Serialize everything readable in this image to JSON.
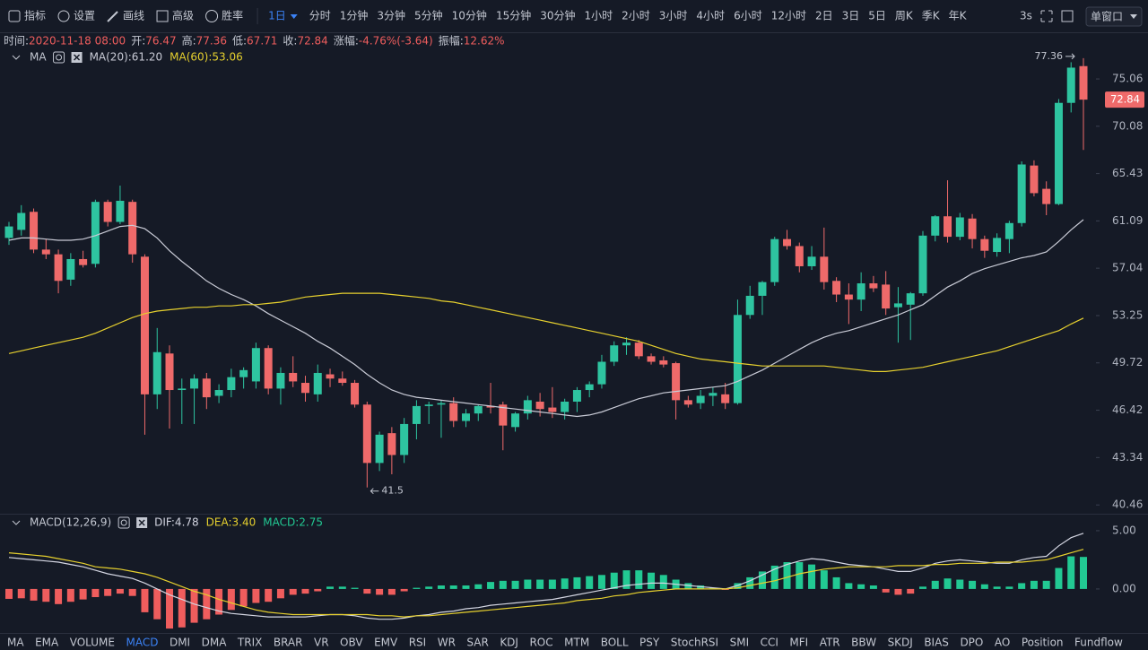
{
  "toolbar": {
    "tools": [
      "指标",
      "设置",
      "画线",
      "高级",
      "胜率"
    ],
    "periods": {
      "items": [
        "1日",
        "分时",
        "1分钟",
        "3分钟",
        "5分钟",
        "10分钟",
        "15分钟",
        "30分钟",
        "1小时",
        "2小时",
        "3小时",
        "4小时",
        "6小时",
        "12小时",
        "2日",
        "3日",
        "5日",
        "周K",
        "季K",
        "年K"
      ],
      "active": 0
    },
    "refresh": "3s",
    "window": "单窗口"
  },
  "info": [
    {
      "label": "时间:",
      "value": "2020-11-18 08:00"
    },
    {
      "label": "开:",
      "value": "76.47"
    },
    {
      "label": "高:",
      "value": "77.36"
    },
    {
      "label": "低:",
      "value": "67.71"
    },
    {
      "label": "收:",
      "value": "72.84"
    },
    {
      "label": "涨幅:",
      "value": "-4.76%(-3.64)"
    },
    {
      "label": "振幅:",
      "value": "12.62%"
    }
  ],
  "chart_data": [
    {
      "type": "candlestick",
      "title": "MA",
      "log_scale": true,
      "grid": false,
      "up_color": "#2ec4a0",
      "down_color": "#ef6a6a",
      "mark_extremes": true,
      "last_price_label": true,
      "ylim": [
        40.0,
        79.9
      ],
      "yticks": [
        75.06,
        70.08,
        65.43,
        61.09,
        57.04,
        53.25,
        49.72,
        46.42,
        43.34,
        40.46
      ],
      "open": [
        59.6,
        60.3,
        61.9,
        58.6,
        58.2,
        56.1,
        57.8,
        57.4,
        62.8,
        61.0,
        62.8,
        58.0,
        47.5,
        50.4,
        47.8,
        47.9,
        48.6,
        47.4,
        47.8,
        48.7,
        48.4,
        50.8,
        47.9,
        49.0,
        48.3,
        47.5,
        48.9,
        48.6,
        48.3,
        46.8,
        43.0,
        44.9,
        43.5,
        45.5,
        46.7,
        46.8,
        46.9,
        45.7,
        46.2,
        46.7,
        46.8,
        45.3,
        46.2,
        47.0,
        46.6,
        46.3,
        47.0,
        47.8,
        48.2,
        49.8,
        51.0,
        51.2,
        50.2,
        49.9,
        49.7,
        47.1,
        46.9,
        47.4,
        47.5,
        46.9,
        53.3,
        54.8,
        55.9,
        59.5,
        58.9,
        57.2,
        58.0,
        56.0,
        54.9,
        54.5,
        55.8,
        55.7,
        53.9,
        54.1,
        55.0,
        59.8,
        61.5,
        59.7,
        61.3,
        59.5,
        58.4,
        59.5,
        60.9,
        66.2,
        64.0,
        62.6,
        72.5,
        76.47
      ],
      "high": [
        61.0,
        62.5,
        62.2,
        59.5,
        58.6,
        58.3,
        58.5,
        63.0,
        63.0,
        64.3,
        63.0,
        58.2,
        52.3,
        51.0,
        48.6,
        48.9,
        49.0,
        48.2,
        49.3,
        49.4,
        51.2,
        51.0,
        49.4,
        50.2,
        48.8,
        49.6,
        49.3,
        49.1,
        48.5,
        47.0,
        45.0,
        45.3,
        45.9,
        47.1,
        47.0,
        47.1,
        47.3,
        46.5,
        46.8,
        48.3,
        47.0,
        46.3,
        47.4,
        47.6,
        48.0,
        47.2,
        48.0,
        48.4,
        50.3,
        51.3,
        51.6,
        51.4,
        50.4,
        50.2,
        49.8,
        47.4,
        47.8,
        48.0,
        48.3,
        54.5,
        55.6,
        56.0,
        59.7,
        60.3,
        59.2,
        58.9,
        60.5,
        56.3,
        55.8,
        56.7,
        56.4,
        56.8,
        55.5,
        55.1,
        60.2,
        61.6,
        64.8,
        61.8,
        61.7,
        59.8,
        60.0,
        61.1,
        66.6,
        66.7,
        64.7,
        72.9,
        76.9,
        77.36
      ],
      "low": [
        59.0,
        59.8,
        58.3,
        57.8,
        55.0,
        55.6,
        57.1,
        57.1,
        60.6,
        60.8,
        57.5,
        44.8,
        46.5,
        45.2,
        45.5,
        45.5,
        46.5,
        46.9,
        47.3,
        47.9,
        47.9,
        47.5,
        46.8,
        48.0,
        47.0,
        47.0,
        48.0,
        48.1,
        46.6,
        41.5,
        42.5,
        42.3,
        43.0,
        44.5,
        45.5,
        44.6,
        45.3,
        45.3,
        45.7,
        46.2,
        43.8,
        45.0,
        45.8,
        46.0,
        45.9,
        45.8,
        46.3,
        47.3,
        47.9,
        49.5,
        50.3,
        50.0,
        49.6,
        49.4,
        45.8,
        46.6,
        46.5,
        46.7,
        46.5,
        46.8,
        53.0,
        53.3,
        55.6,
        58.6,
        56.7,
        56.9,
        55.3,
        54.3,
        52.6,
        53.6,
        55.1,
        53.3,
        51.2,
        51.4,
        54.8,
        59.3,
        59.2,
        59.4,
        58.7,
        57.9,
        58.0,
        58.3,
        60.6,
        63.3,
        61.6,
        62.5,
        71.5,
        67.71
      ],
      "close": [
        60.6,
        61.8,
        58.6,
        58.2,
        56.0,
        57.8,
        57.3,
        62.8,
        61.0,
        62.9,
        58.2,
        47.5,
        50.5,
        47.8,
        47.9,
        48.6,
        47.3,
        47.8,
        48.7,
        49.2,
        50.8,
        47.9,
        49.0,
        48.4,
        47.6,
        49.0,
        48.6,
        48.3,
        46.8,
        43.0,
        44.8,
        43.5,
        45.5,
        46.7,
        46.8,
        46.9,
        45.7,
        46.2,
        46.7,
        46.6,
        45.4,
        46.2,
        47.1,
        46.5,
        46.3,
        47.0,
        47.8,
        48.2,
        49.8,
        51.0,
        51.2,
        50.2,
        49.8,
        49.6,
        47.1,
        46.8,
        47.4,
        47.6,
        46.9,
        53.3,
        54.8,
        55.9,
        59.5,
        58.9,
        57.2,
        58.0,
        55.9,
        54.9,
        54.5,
        55.8,
        55.4,
        53.8,
        54.2,
        55.0,
        59.8,
        61.5,
        59.7,
        61.4,
        59.5,
        58.5,
        59.6,
        60.9,
        66.3,
        63.6,
        62.6,
        72.5,
        76.3,
        72.84
      ],
      "series": [
        {
          "name": "MA(20):61.20",
          "color": "#c9cbd6",
          "values": [
            59.4,
            59.6,
            59.6,
            59.5,
            59.4,
            59.4,
            59.5,
            59.8,
            60.2,
            60.6,
            60.7,
            60.4,
            59.6,
            58.5,
            57.6,
            56.8,
            56.0,
            55.4,
            54.9,
            54.5,
            54.0,
            53.4,
            52.9,
            52.4,
            51.9,
            51.3,
            50.8,
            50.2,
            49.6,
            48.9,
            48.3,
            47.8,
            47.5,
            47.3,
            47.2,
            47.1,
            47.0,
            46.9,
            46.8,
            46.7,
            46.6,
            46.5,
            46.4,
            46.3,
            46.2,
            46.1,
            46.0,
            46.1,
            46.3,
            46.6,
            46.9,
            47.2,
            47.4,
            47.6,
            47.7,
            47.8,
            47.9,
            48.0,
            48.1,
            48.4,
            48.8,
            49.2,
            49.7,
            50.2,
            50.7,
            51.2,
            51.6,
            51.9,
            52.1,
            52.4,
            52.7,
            53.0,
            53.3,
            53.7,
            54.1,
            54.8,
            55.5,
            56.0,
            56.6,
            57.0,
            57.3,
            57.6,
            57.9,
            58.1,
            58.4,
            59.3,
            60.3,
            61.2
          ]
        },
        {
          "name": "MA(60):53.06",
          "color": "#e6d02e",
          "values": [
            50.4,
            50.6,
            50.8,
            51.0,
            51.2,
            51.4,
            51.6,
            51.9,
            52.3,
            52.7,
            53.1,
            53.4,
            53.6,
            53.7,
            53.8,
            53.9,
            53.9,
            54.0,
            54.0,
            54.1,
            54.1,
            54.2,
            54.3,
            54.5,
            54.7,
            54.8,
            54.9,
            55.0,
            55.0,
            55.0,
            55.0,
            54.9,
            54.8,
            54.7,
            54.6,
            54.4,
            54.3,
            54.1,
            53.9,
            53.7,
            53.5,
            53.3,
            53.1,
            52.9,
            52.7,
            52.5,
            52.3,
            52.1,
            51.9,
            51.7,
            51.5,
            51.3,
            51.0,
            50.7,
            50.4,
            50.2,
            50.0,
            49.9,
            49.8,
            49.7,
            49.6,
            49.5,
            49.5,
            49.5,
            49.5,
            49.5,
            49.5,
            49.4,
            49.3,
            49.2,
            49.1,
            49.1,
            49.2,
            49.3,
            49.4,
            49.6,
            49.8,
            50.0,
            50.2,
            50.4,
            50.6,
            50.9,
            51.2,
            51.5,
            51.8,
            52.1,
            52.6,
            53.06
          ]
        }
      ]
    },
    {
      "type": "macd",
      "title": "MACD(12,26,9)",
      "ylim": [
        -3.7,
        6.15
      ],
      "yticks": [
        {
          "value": 5,
          "label": "5.00"
        },
        {
          "value": 0,
          "label": "0.00"
        }
      ],
      "series": [
        {
          "name": "DIF:4.78",
          "color": "#d4d6e2",
          "values": [
            2.7,
            2.6,
            2.5,
            2.4,
            2.3,
            2.1,
            1.9,
            1.6,
            1.3,
            1.1,
            0.9,
            0.5,
            0.0,
            -0.5,
            -0.9,
            -1.3,
            -1.6,
            -1.9,
            -2.1,
            -2.2,
            -2.3,
            -2.4,
            -2.4,
            -2.4,
            -2.4,
            -2.3,
            -2.2,
            -2.2,
            -2.3,
            -2.5,
            -2.6,
            -2.6,
            -2.5,
            -2.3,
            -2.2,
            -2.0,
            -1.9,
            -1.7,
            -1.6,
            -1.4,
            -1.3,
            -1.2,
            -1.1,
            -1.0,
            -0.9,
            -0.7,
            -0.5,
            -0.3,
            -0.1,
            0.1,
            0.3,
            0.4,
            0.5,
            0.5,
            0.4,
            0.3,
            0.2,
            0.1,
            0.0,
            0.3,
            0.7,
            1.2,
            1.7,
            2.1,
            2.4,
            2.6,
            2.5,
            2.3,
            2.1,
            2.0,
            1.9,
            1.7,
            1.5,
            1.5,
            1.8,
            2.2,
            2.4,
            2.5,
            2.4,
            2.3,
            2.2,
            2.2,
            2.5,
            2.7,
            2.8,
            3.7,
            4.4,
            4.78
          ]
        },
        {
          "name": "DEA:3.40",
          "color": "#e6d02e",
          "values": [
            3.1,
            3.0,
            2.9,
            2.8,
            2.6,
            2.4,
            2.2,
            1.9,
            1.8,
            1.7,
            1.5,
            1.3,
            1.0,
            0.6,
            0.2,
            -0.2,
            -0.5,
            -0.9,
            -1.2,
            -1.5,
            -1.8,
            -2.0,
            -2.1,
            -2.2,
            -2.2,
            -2.2,
            -2.2,
            -2.2,
            -2.2,
            -2.2,
            -2.3,
            -2.3,
            -2.4,
            -2.3,
            -2.3,
            -2.2,
            -2.1,
            -2.0,
            -1.9,
            -1.8,
            -1.7,
            -1.6,
            -1.5,
            -1.4,
            -1.3,
            -1.2,
            -1.0,
            -0.9,
            -0.8,
            -0.6,
            -0.5,
            -0.3,
            -0.2,
            -0.1,
            0.0,
            0.0,
            0.0,
            0.0,
            0.0,
            0.1,
            0.3,
            0.5,
            0.7,
            1.0,
            1.3,
            1.5,
            1.7,
            1.8,
            1.9,
            1.9,
            1.9,
            1.9,
            2.0,
            2.0,
            2.0,
            2.1,
            2.1,
            2.2,
            2.2,
            2.2,
            2.3,
            2.3,
            2.3,
            2.4,
            2.5,
            2.8,
            3.1,
            3.4
          ]
        }
      ],
      "histogram": {
        "name": "MACD:2.75",
        "up_color": "#22c993",
        "down_color": "#ef5d5d",
        "values": [
          -0.85,
          -0.8,
          -1.0,
          -1.1,
          -1.3,
          -1.1,
          -0.9,
          -0.7,
          -0.6,
          -0.4,
          -0.6,
          -2.0,
          -2.6,
          -3.4,
          -3.3,
          -2.9,
          -2.6,
          -2.2,
          -1.8,
          -1.5,
          -1.2,
          -1.1,
          -0.8,
          -0.5,
          -0.4,
          -0.2,
          0.2,
          0.2,
          0.1,
          -0.4,
          -0.5,
          -0.5,
          -0.2,
          0.1,
          0.2,
          0.3,
          0.3,
          0.3,
          0.4,
          0.6,
          0.7,
          0.7,
          0.8,
          0.8,
          0.8,
          0.9,
          1.0,
          1.1,
          1.2,
          1.4,
          1.6,
          1.6,
          1.4,
          1.2,
          0.8,
          0.5,
          0.3,
          0.1,
          -0.05,
          0.5,
          1.0,
          1.5,
          2.0,
          2.3,
          2.3,
          2.1,
          1.6,
          1.0,
          0.5,
          0.4,
          0.3,
          -0.3,
          -0.5,
          -0.4,
          0.2,
          0.7,
          0.9,
          0.8,
          0.7,
          0.4,
          0.2,
          0.2,
          0.5,
          0.7,
          0.7,
          1.8,
          2.8,
          2.75
        ]
      }
    }
  ],
  "tabs": {
    "items": [
      "MA",
      "EMA",
      "VOLUME",
      "MACD",
      "DMI",
      "DMA",
      "TRIX",
      "BRAR",
      "VR",
      "OBV",
      "EMV",
      "RSI",
      "WR",
      "SAR",
      "KDJ",
      "ROC",
      "MTM",
      "BOLL",
      "PSY",
      "StochRSI",
      "SMI",
      "CCI",
      "MFI",
      "ATR",
      "BBW",
      "SKDJ",
      "BIAS",
      "DPO",
      "AO",
      "Position",
      "Fundflow"
    ],
    "active": 3
  }
}
